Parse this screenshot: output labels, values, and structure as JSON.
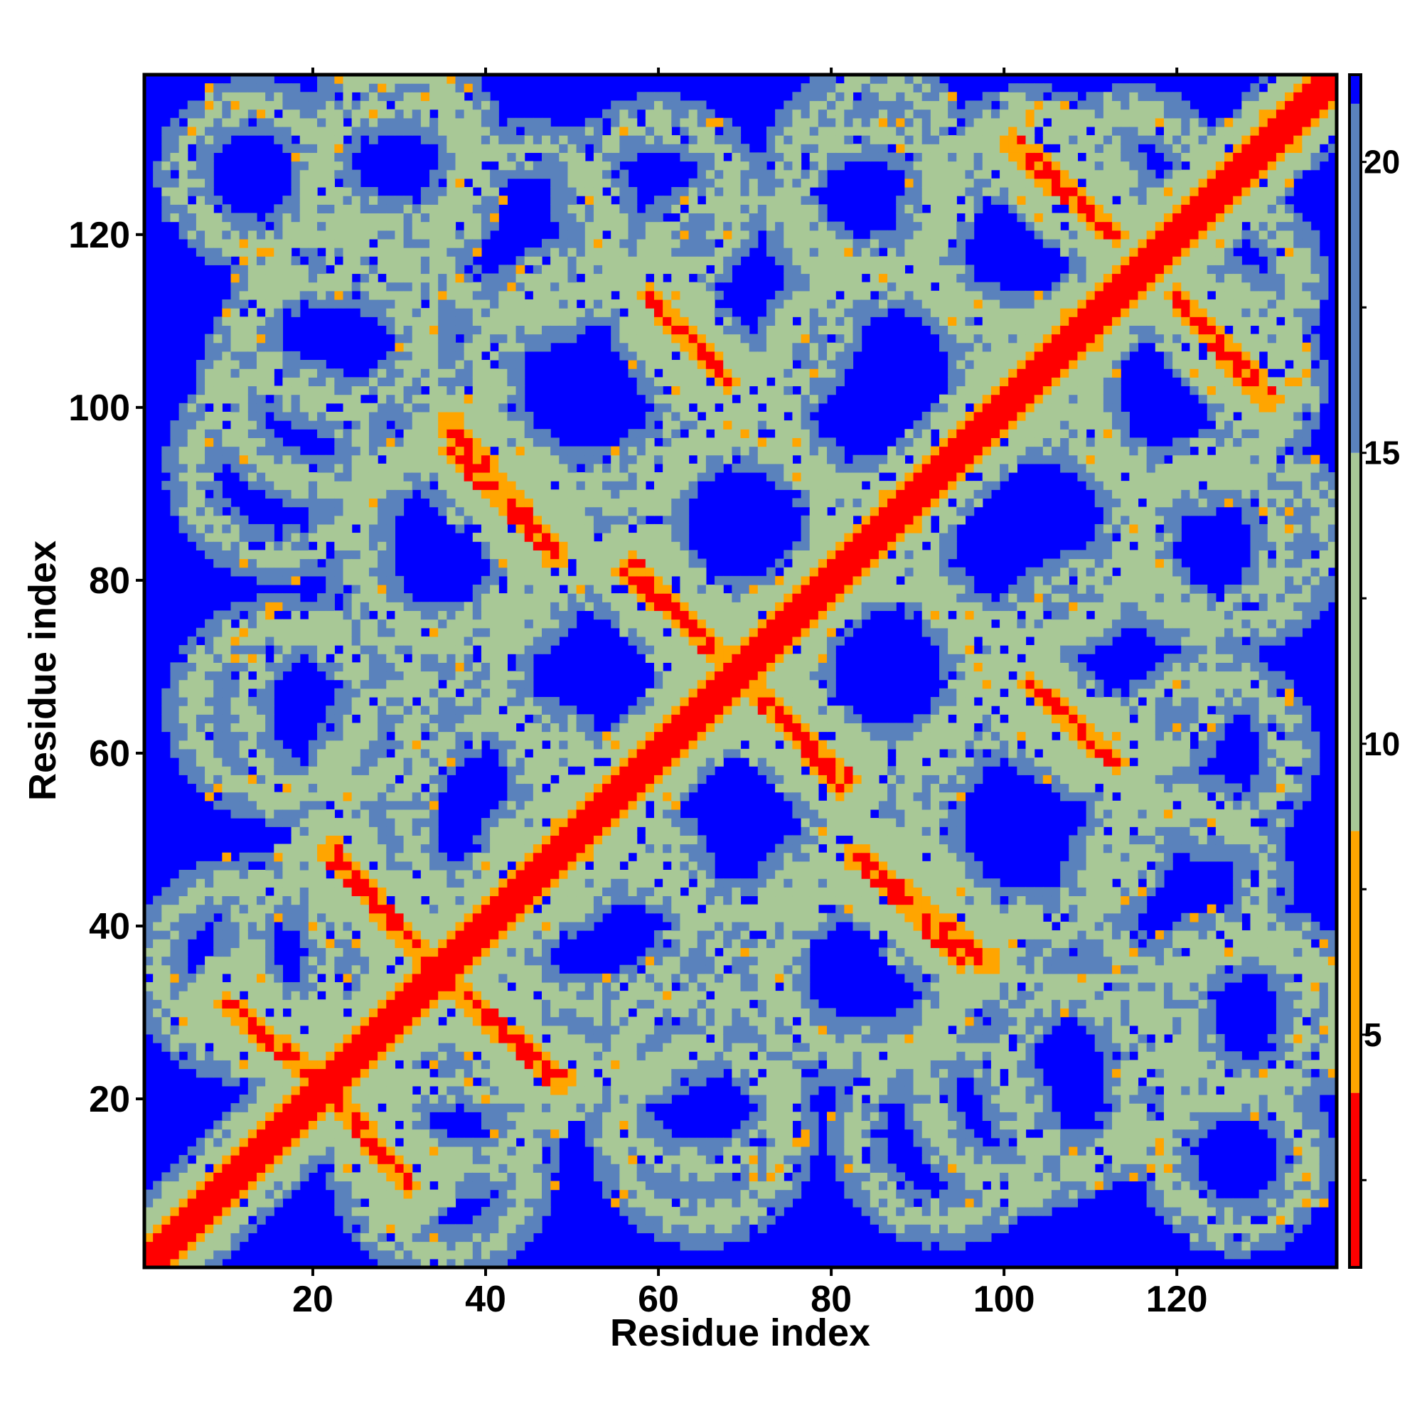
{
  "chart_data": {
    "type": "heatmap",
    "title": "",
    "xlabel": "Residue index",
    "ylabel": "Residue index",
    "xlim": [
      1,
      138
    ],
    "ylim": [
      1,
      138
    ],
    "x_ticks": [
      20,
      40,
      60,
      80,
      100,
      120
    ],
    "y_ticks": [
      20,
      40,
      60,
      80,
      100,
      120
    ],
    "grid": false,
    "colorbar": {
      "location": "right",
      "range": [
        1,
        21.5
      ],
      "ticks": [
        5,
        10,
        15,
        20
      ],
      "colors": [
        {
          "from": 1,
          "to": 4,
          "color": "#ff0000"
        },
        {
          "from": 4,
          "to": 8.5,
          "color": "#ffa500"
        },
        {
          "from": 8.5,
          "to": 15,
          "color": "#a8c896"
        },
        {
          "from": 15,
          "to": 21,
          "color": "#5a82bc"
        },
        {
          "from": 21,
          "to": 21.5,
          "color": "#0000ff"
        }
      ]
    },
    "matrix_size": 138,
    "symmetric": true,
    "background_value": 21,
    "diagonal_band": {
      "core_halfwidth": 2.2,
      "orange_halfwidth": 3.2,
      "halo_halfwidth": 8
    },
    "contact_segments": [
      {
        "x": [
          10,
          23
        ],
        "y": [
          31,
          20
        ],
        "halfwidth": 1.3,
        "halo": 5.5
      },
      {
        "x": [
          23,
          31
        ],
        "y": [
          20,
          10
        ],
        "halfwidth": 1.3,
        "halo": 5.5
      },
      {
        "x": [
          22,
          34
        ],
        "y": [
          48,
          36
        ],
        "halfwidth": 1.4,
        "halo": 6
      },
      {
        "x": [
          36,
          49
        ],
        "y": [
          33,
          22
        ],
        "halfwidth": 1.4,
        "halo": 6
      },
      {
        "x": [
          36,
          48
        ],
        "y": [
          98,
          83
        ],
        "halfwidth": 1.5,
        "halo": 6
      },
      {
        "x": [
          56,
          67
        ],
        "y": [
          81,
          72
        ],
        "halfwidth": 1.3,
        "halo": 6
      },
      {
        "x": [
          59,
          68
        ],
        "y": [
          113,
          103
        ],
        "halfwidth": 1.3,
        "halo": 6
      },
      {
        "x": [
          72,
          82
        ],
        "y": [
          66,
          57
        ],
        "halfwidth": 1.4,
        "halo": 6
      },
      {
        "x": [
          83,
          95
        ],
        "y": [
          48,
          36
        ],
        "halfwidth": 1.4,
        "halo": 6
      },
      {
        "x": [
          104,
          113
        ],
        "y": [
          67,
          59
        ],
        "halfwidth": 1.3,
        "halo": 6
      },
      {
        "x": [
          101,
          113
        ],
        "y": [
          131,
          120
        ],
        "halfwidth": 1.3,
        "halo": 6
      },
      {
        "x": [
          120,
          130
        ],
        "y": [
          113,
          101
        ],
        "halfwidth": 1.4,
        "halo": 6
      }
    ],
    "contact_rings": [
      {
        "cx": 30,
        "cy": 130,
        "r": 9
      },
      {
        "cx": 60,
        "cy": 124,
        "r": 9
      },
      {
        "cx": 84,
        "cy": 123,
        "r": 9
      },
      {
        "cx": 115,
        "cy": 126,
        "r": 8
      },
      {
        "cx": 22,
        "cy": 103,
        "r": 12
      },
      {
        "cx": 53,
        "cy": 103,
        "r": 14
      },
      {
        "cx": 87,
        "cy": 103,
        "r": 13
      },
      {
        "cx": 122,
        "cy": 103,
        "r": 12
      },
      {
        "cx": 38,
        "cy": 84,
        "r": 12
      },
      {
        "cx": 70,
        "cy": 87,
        "r": 10
      },
      {
        "cx": 103,
        "cy": 85,
        "r": 12
      },
      {
        "cx": 127,
        "cy": 85,
        "r": 10
      },
      {
        "cx": 22,
        "cy": 65,
        "r": 10
      },
      {
        "cx": 54,
        "cy": 68,
        "r": 12
      },
      {
        "cx": 85,
        "cy": 69,
        "r": 11
      },
      {
        "cx": 112,
        "cy": 69,
        "r": 12
      },
      {
        "cx": 120,
        "cy": 45,
        "r": 10
      },
      {
        "cx": 43,
        "cy": 52,
        "r": 12
      },
      {
        "cx": 70,
        "cy": 52,
        "r": 11
      },
      {
        "cx": 103,
        "cy": 52,
        "r": 11
      },
      {
        "cx": 20,
        "cy": 38,
        "r": 8
      },
      {
        "cx": 56,
        "cy": 34,
        "r": 12
      },
      {
        "cx": 84,
        "cy": 34,
        "r": 10
      },
      {
        "cx": 126,
        "cy": 30,
        "r": 9
      },
      {
        "cx": 35,
        "cy": 12,
        "r": 10
      },
      {
        "cx": 65,
        "cy": 16,
        "r": 10
      },
      {
        "cx": 93,
        "cy": 16,
        "r": 10
      },
      {
        "cx": 110,
        "cy": 23,
        "r": 10
      },
      {
        "cx": 127,
        "cy": 13,
        "r": 8
      }
    ]
  }
}
